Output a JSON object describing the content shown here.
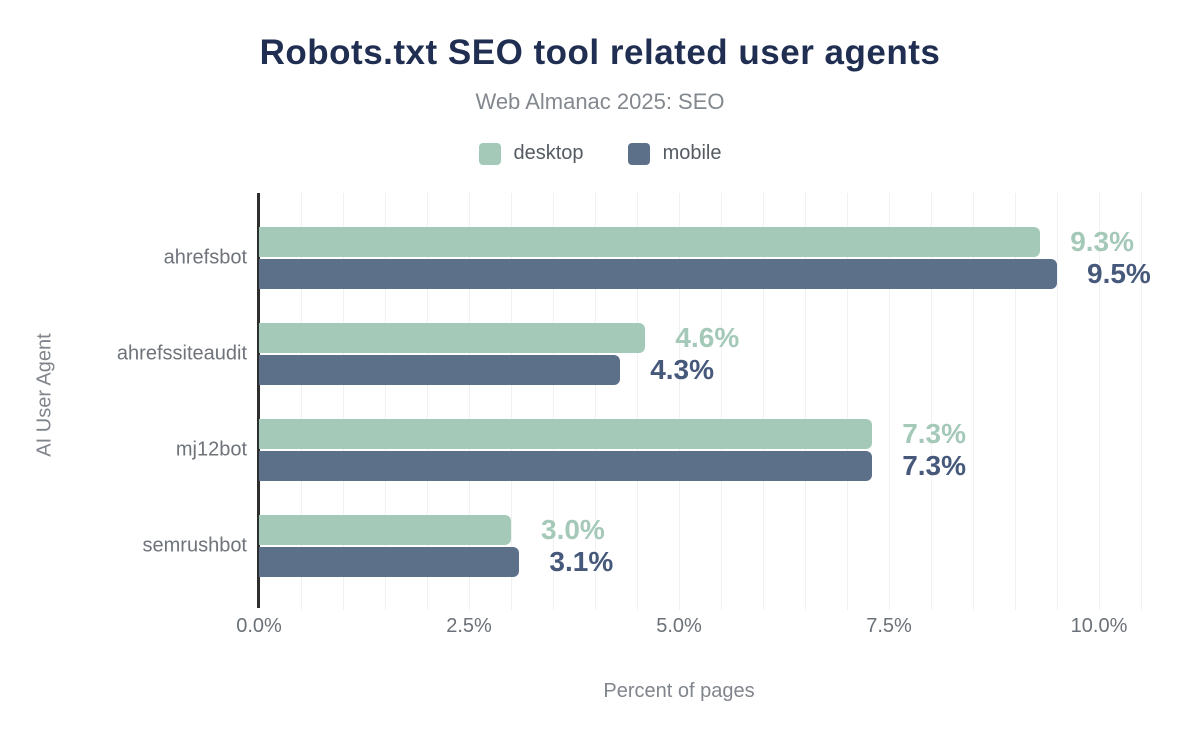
{
  "header": {
    "title": "Robots.txt SEO tool related user agents",
    "subtitle": "Web Almanac 2025: SEO"
  },
  "chart_data": {
    "type": "bar",
    "orientation": "horizontal",
    "title": "Robots.txt SEO tool related user agents",
    "subtitle": "Web Almanac 2025: SEO",
    "xlabel": "Percent of pages",
    "ylabel": "AI User Agent",
    "categories": [
      "ahrefsbot",
      "ahrefssiteaudit",
      "mj12bot",
      "semrushbot"
    ],
    "series": [
      {
        "name": "desktop",
        "color": "#a5c9b9",
        "label_color": "#a5c9b9",
        "values": [
          9.3,
          4.6,
          7.3,
          3.0
        ],
        "labels": [
          "9.3%",
          "4.6%",
          "7.3%",
          "3.0%"
        ]
      },
      {
        "name": "mobile",
        "color": "#5d7089",
        "label_color": "#47597b",
        "values": [
          9.5,
          4.3,
          7.3,
          3.1
        ],
        "labels": [
          "9.5%",
          "4.3%",
          "7.3%",
          "3.1%"
        ]
      }
    ],
    "x_ticks": [
      {
        "value": 0,
        "label": "0.0%"
      },
      {
        "value": 2.5,
        "label": "2.5%"
      },
      {
        "value": 5,
        "label": "5.0%"
      },
      {
        "value": 7.5,
        "label": "7.5%"
      },
      {
        "value": 10,
        "label": "10.0%"
      }
    ],
    "xlim": [
      0,
      10.5
    ],
    "gridline_step": 0.5,
    "grid": true,
    "legend_position": "top",
    "colors": {
      "title": "#1f2e51",
      "subtitle": "#83888f",
      "axis_text": "#6b7178",
      "axis_line": "#2e2e2e",
      "gridline": "#eff1f2"
    }
  }
}
